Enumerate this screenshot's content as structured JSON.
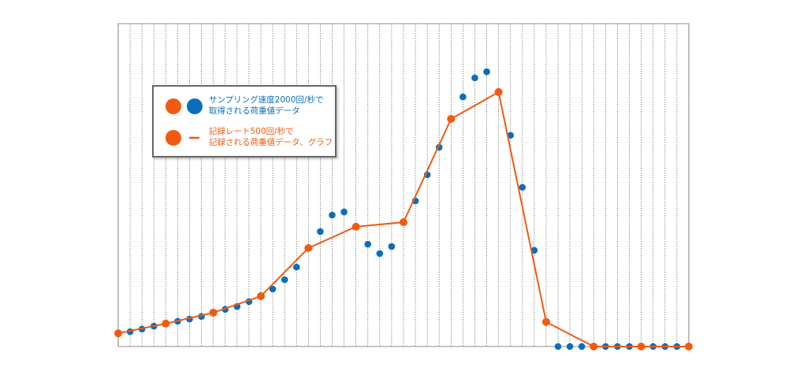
{
  "chart_data": {
    "type": "scatter-line",
    "categories": [
      null,
      null,
      null,
      null,
      null,
      null,
      null,
      null,
      null,
      null,
      null,
      null,
      null,
      null,
      null,
      null,
      null,
      null,
      null,
      null,
      null,
      null,
      null,
      null,
      null,
      null,
      null,
      null,
      null,
      null,
      null,
      null,
      null,
      null,
      null,
      null,
      null,
      null,
      null,
      null,
      null,
      null,
      null,
      null,
      null,
      null,
      null,
      null,
      null
    ],
    "ylim": [
      0,
      100
    ],
    "grid": true,
    "legend": "upper-left",
    "series": [
      {
        "name": "サンプリング速度2000回/秒で\n取得される荷重値データ",
        "color": "#0a6ebd",
        "marker": "dot",
        "values": [
          4.1,
          4.6,
          5.4,
          6.3,
          7.1,
          7.8,
          8.5,
          9.3,
          10.5,
          11.5,
          12.4,
          13.9,
          15.6,
          17.8,
          20.7,
          24.6,
          30.5,
          35.6,
          40.7,
          41.7,
          37.1,
          31.7,
          28.8,
          31.0,
          38.5,
          45.1,
          53.2,
          61.7,
          70.5,
          77.3,
          83.2,
          85.1,
          78.8,
          65.4,
          49.3,
          29.8,
          7.6,
          0,
          0,
          0,
          0,
          0,
          0,
          0,
          0,
          0,
          0,
          0,
          0
        ]
      },
      {
        "name": "記録レート500回/秒で\n記録される荷重値データ、グラフ",
        "color": "#f25a12",
        "marker": "dot-line",
        "values": [
          4.1,
          7.1,
          10.5,
          15.6,
          30.5,
          37.1,
          38.5,
          70.5,
          78.8,
          7.6,
          0,
          0,
          0
        ]
      }
    ]
  }
}
